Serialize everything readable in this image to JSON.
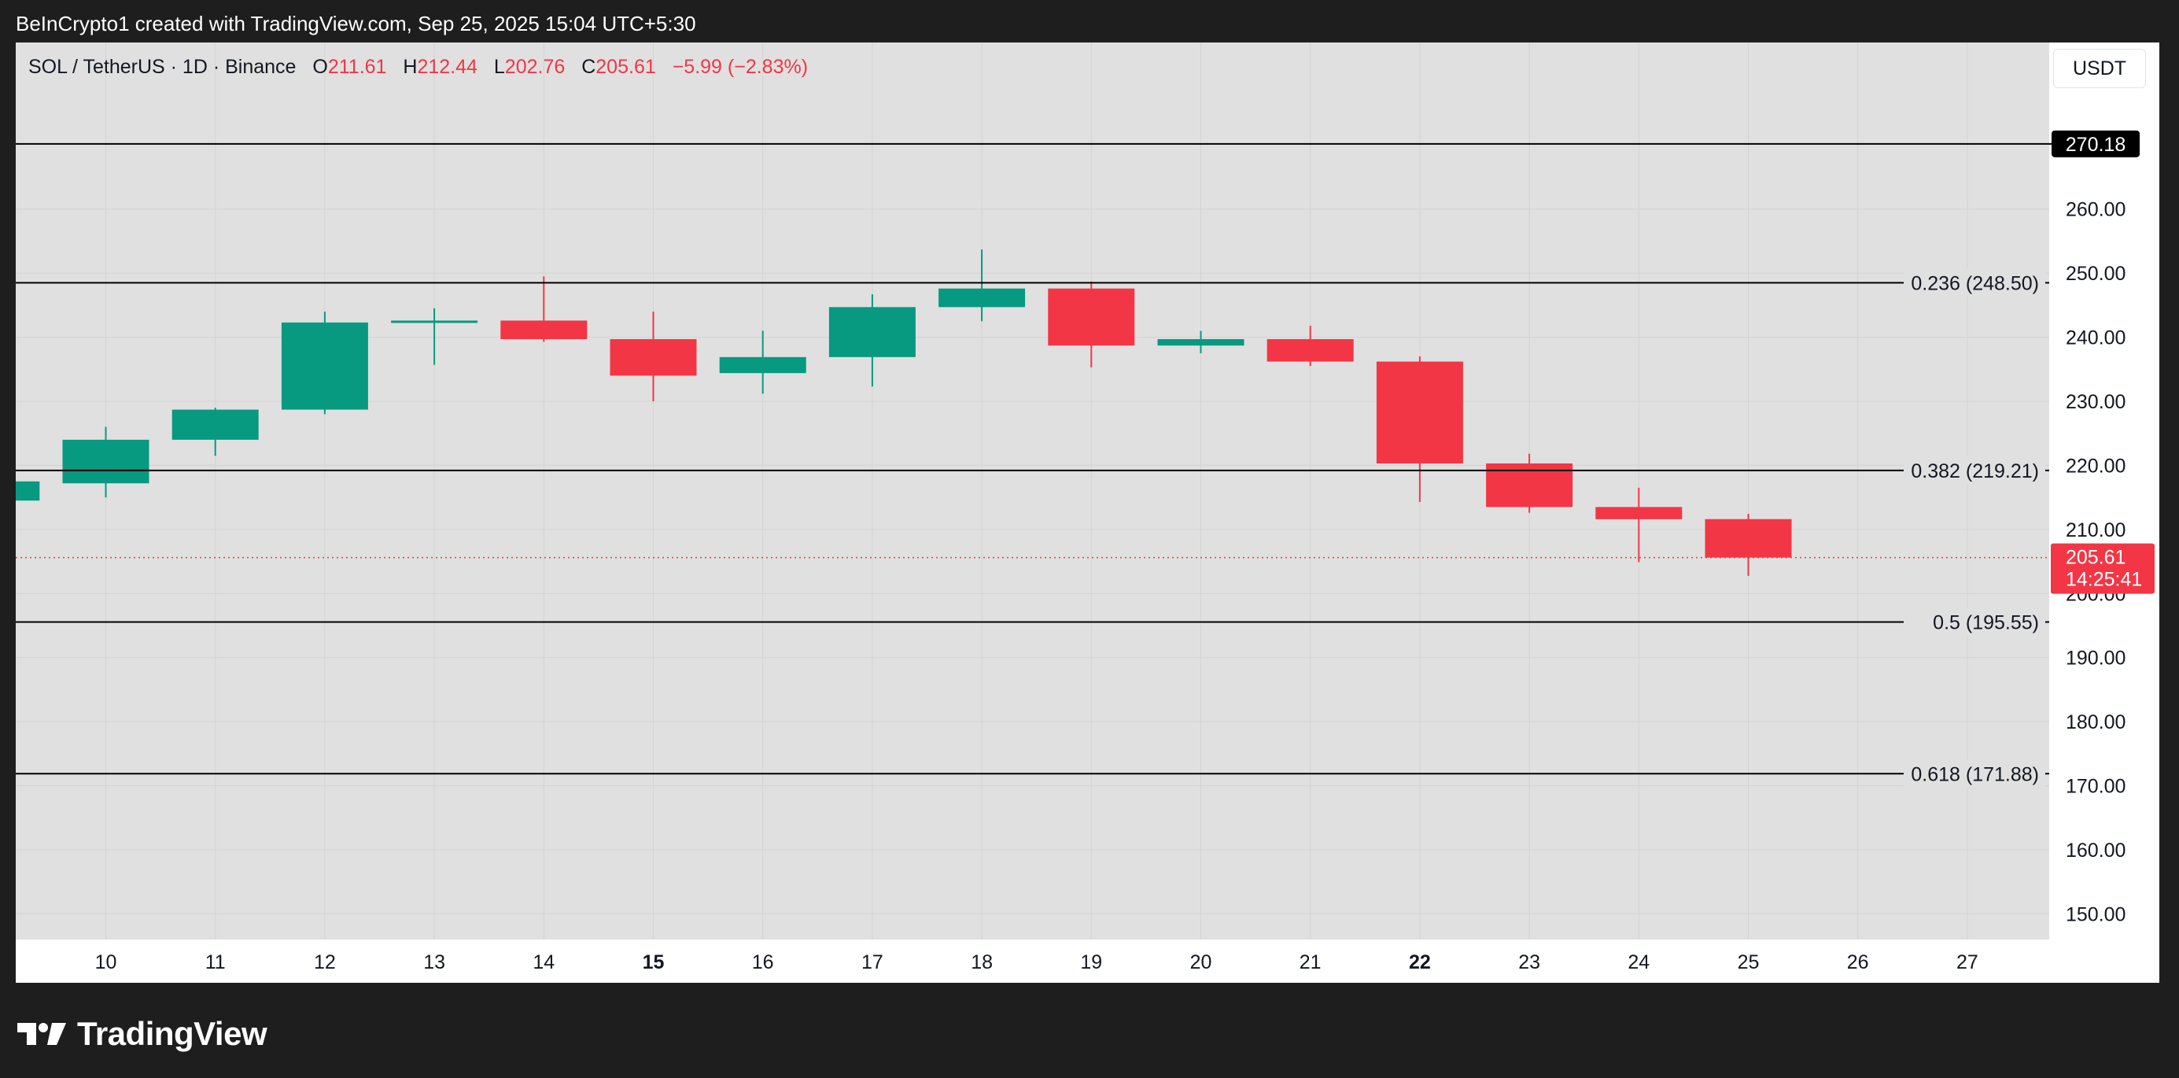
{
  "caption": "BeInCrypto1 created with TradingView.com, Sep 25, 2025 15:04 UTC+5:30",
  "legend": {
    "symbol": "SOL / TetherUS · 1D · Binance",
    "o_label": "O",
    "o_value": "211.61",
    "h_label": "H",
    "h_value": "212.44",
    "l_label": "L",
    "l_value": "202.76",
    "c_label": "C",
    "c_value": "205.61",
    "change": "−5.99 (−2.83%)"
  },
  "currency": "USDT",
  "brand": "TradingView",
  "colors": {
    "up": "#089981",
    "down": "#f23645",
    "plot_bg": "#e0e0e0",
    "frame": "#ffffff",
    "outer": "#1e1e1e",
    "grid": "#d3d3d3",
    "fib_line": "#000000"
  },
  "chart_data": {
    "type": "candlestick",
    "ylim": [
      146,
      286
    ],
    "y_ticks": [
      "150.00",
      "160.00",
      "170.00",
      "180.00",
      "190.00",
      "200.00",
      "210.00",
      "220.00",
      "230.00",
      "240.00",
      "250.00",
      "260.00"
    ],
    "x_ticks": [
      {
        "label": "10",
        "bold": false
      },
      {
        "label": "11",
        "bold": false
      },
      {
        "label": "12",
        "bold": false
      },
      {
        "label": "13",
        "bold": false
      },
      {
        "label": "14",
        "bold": false
      },
      {
        "label": "15",
        "bold": true
      },
      {
        "label": "16",
        "bold": false
      },
      {
        "label": "17",
        "bold": false
      },
      {
        "label": "18",
        "bold": false
      },
      {
        "label": "19",
        "bold": false
      },
      {
        "label": "20",
        "bold": false
      },
      {
        "label": "21",
        "bold": false
      },
      {
        "label": "22",
        "bold": true
      },
      {
        "label": "23",
        "bold": false
      },
      {
        "label": "24",
        "bold": false
      },
      {
        "label": "25",
        "bold": false
      },
      {
        "label": "26",
        "bold": false
      },
      {
        "label": "27",
        "bold": false
      }
    ],
    "candles": [
      {
        "date": "9",
        "open": 214.5,
        "high": 217.5,
        "low": 214.0,
        "close": 217.5
      },
      {
        "date": "10",
        "open": 217.2,
        "high": 226.0,
        "low": 215.0,
        "close": 224.0
      },
      {
        "date": "11",
        "open": 224.0,
        "high": 229.0,
        "low": 221.5,
        "close": 228.7
      },
      {
        "date": "12",
        "open": 228.7,
        "high": 244.0,
        "low": 228.0,
        "close": 242.3
      },
      {
        "date": "13",
        "open": 242.3,
        "high": 244.5,
        "low": 235.7,
        "close": 242.6
      },
      {
        "date": "14",
        "open": 242.6,
        "high": 249.5,
        "low": 239.3,
        "close": 239.7
      },
      {
        "date": "15",
        "open": 239.7,
        "high": 244.0,
        "low": 230.0,
        "close": 234.0
      },
      {
        "date": "16",
        "open": 234.4,
        "high": 241.0,
        "low": 231.2,
        "close": 236.9
      },
      {
        "date": "17",
        "open": 236.9,
        "high": 246.7,
        "low": 232.3,
        "close": 244.7
      },
      {
        "date": "18",
        "open": 244.7,
        "high": 253.7,
        "low": 242.5,
        "close": 247.6
      },
      {
        "date": "19",
        "open": 247.6,
        "high": 248.7,
        "low": 235.3,
        "close": 238.7
      },
      {
        "date": "20",
        "open": 238.7,
        "high": 241.0,
        "low": 237.5,
        "close": 239.7
      },
      {
        "date": "21",
        "open": 239.7,
        "high": 241.8,
        "low": 235.5,
        "close": 236.2
      },
      {
        "date": "22",
        "open": 236.2,
        "high": 237.0,
        "low": 214.3,
        "close": 220.3
      },
      {
        "date": "23",
        "open": 220.3,
        "high": 221.8,
        "low": 212.6,
        "close": 213.5
      },
      {
        "date": "24",
        "open": 213.5,
        "high": 216.5,
        "low": 204.9,
        "close": 211.6
      },
      {
        "date": "25",
        "open": 211.61,
        "high": 212.44,
        "low": 202.76,
        "close": 205.61
      }
    ],
    "fib_levels": [
      {
        "label": "0.236 (248.50)",
        "value": 248.5
      },
      {
        "label": "0.382 (219.21)",
        "value": 219.21
      },
      {
        "label": "0.5 (195.55)",
        "value": 195.55
      },
      {
        "label": "0.618 (171.88)",
        "value": 171.88
      }
    ],
    "top_line": {
      "label": "270.18",
      "value": 270.18
    },
    "current_price": {
      "label": "205.61",
      "countdown": "14:25:41",
      "value": 205.61
    }
  }
}
